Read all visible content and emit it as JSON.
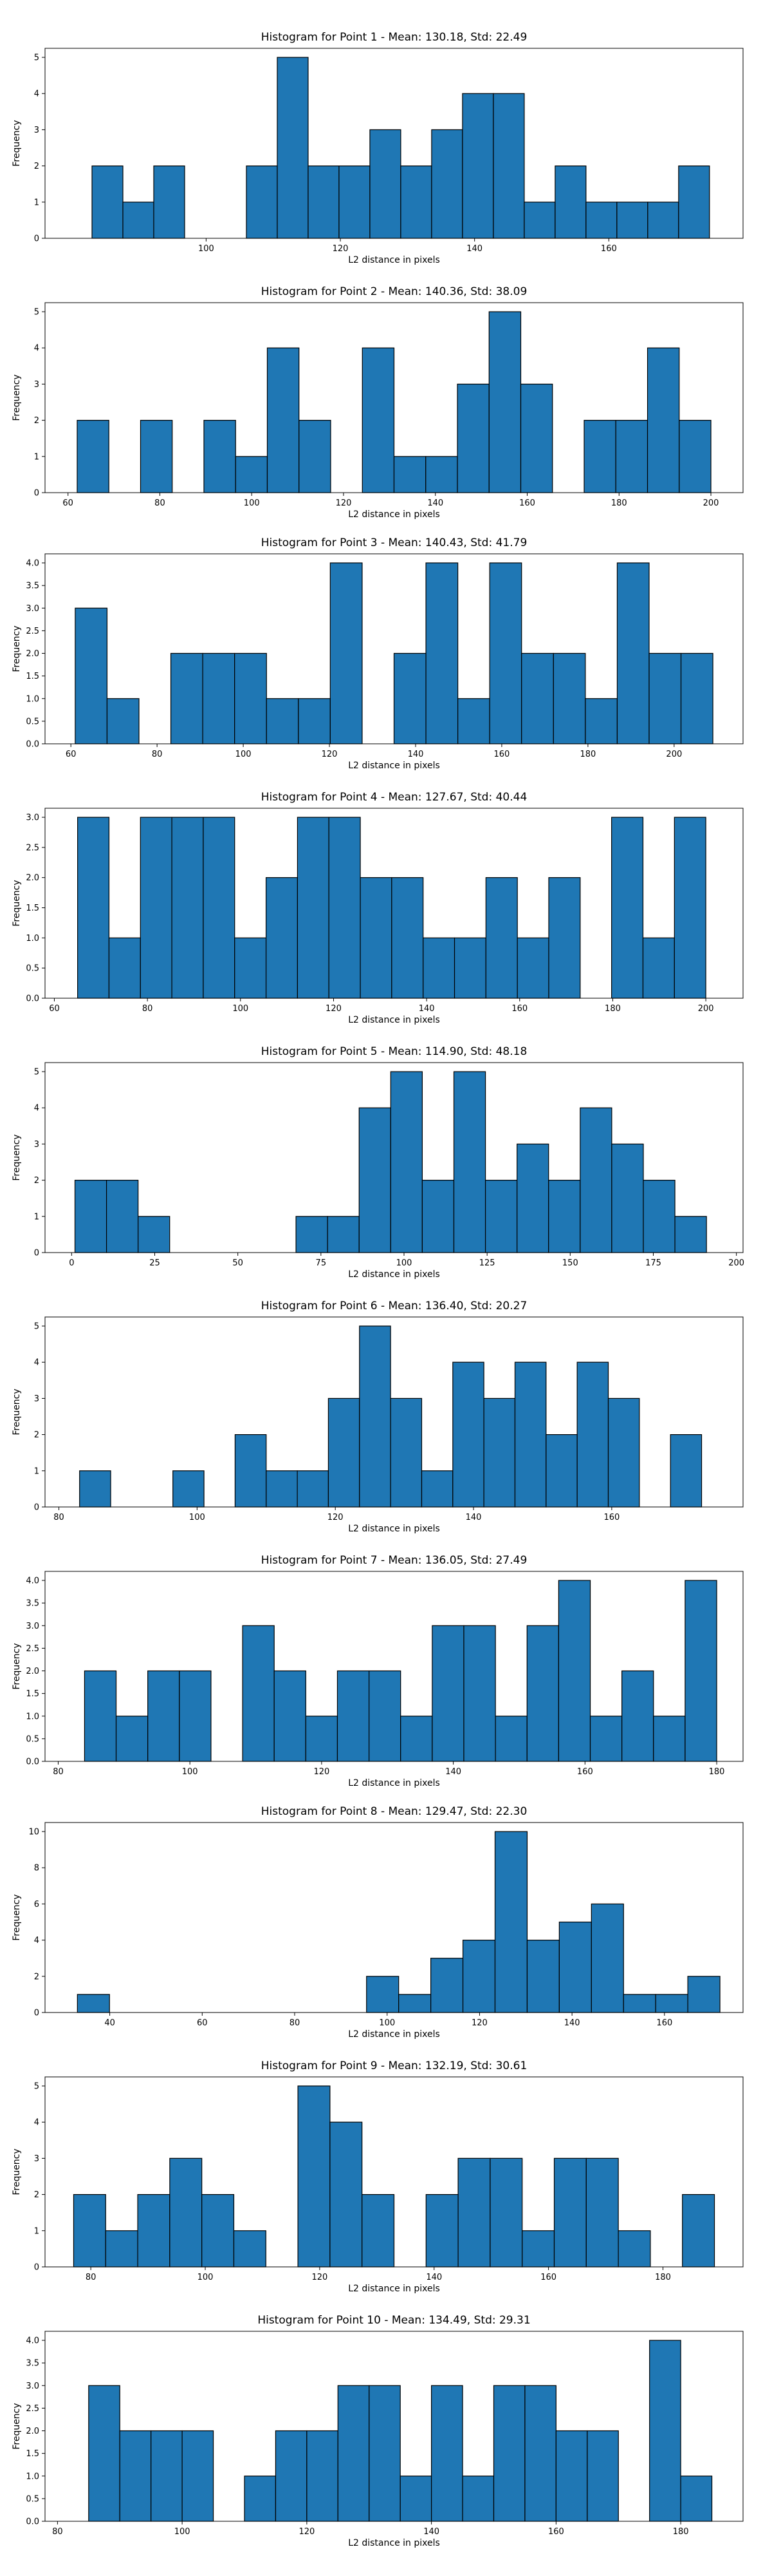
{
  "chart_data": [
    {
      "type": "bar",
      "title": "Histogram for Point 1 - Mean: 130.18, Std: 22.49",
      "xlabel": "L2 distance in pixels",
      "ylabel": "Frequency",
      "xlim": [
        76,
        180
      ],
      "ylim": [
        0,
        5.25
      ],
      "bin_edges": [
        83,
        87.6,
        92.2,
        96.8,
        101.4,
        106,
        110.6,
        115.2,
        119.8,
        124.4,
        129,
        133.6,
        138.2,
        142.8,
        147.4,
        152,
        156.6,
        161.2,
        165.8,
        170.4,
        175
      ],
      "values": [
        2,
        1,
        2,
        0,
        0,
        2,
        5,
        2,
        2,
        3,
        2,
        3,
        4,
        4,
        1,
        2,
        1,
        1,
        1,
        2
      ],
      "xticks": [
        100,
        120,
        140,
        160
      ],
      "yticks": [
        0,
        1,
        2,
        3,
        4,
        5
      ]
    },
    {
      "type": "bar",
      "title": "Histogram for Point 2 - Mean: 140.36, Std: 38.09",
      "xlabel": "L2 distance in pixels",
      "ylabel": "Frequency",
      "xlim": [
        55,
        207
      ],
      "ylim": [
        0,
        5.25
      ],
      "bin_edges": [
        62,
        68.9,
        75.8,
        82.7,
        89.6,
        96.5,
        103.4,
        110.3,
        117.2,
        124.1,
        131,
        137.9,
        144.8,
        151.7,
        158.6,
        165.5,
        172.4,
        179.3,
        186.2,
        193.1,
        200
      ],
      "values": [
        2,
        0,
        2,
        0,
        2,
        1,
        4,
        2,
        0,
        4,
        1,
        1,
        3,
        5,
        3,
        0,
        2,
        2,
        4,
        2
      ],
      "xticks": [
        60,
        80,
        100,
        120,
        140,
        160,
        180,
        200
      ],
      "yticks": [
        0,
        1,
        2,
        3,
        4,
        5
      ]
    },
    {
      "type": "bar",
      "title": "Histogram for Point 3 - Mean: 140.43, Std: 41.79",
      "xlabel": "L2 distance in pixels",
      "ylabel": "Frequency",
      "xlim": [
        54,
        216
      ],
      "ylim": [
        0,
        4.2
      ],
      "bin_edges": [
        61,
        68.4,
        75.8,
        83.2,
        90.6,
        98,
        105.4,
        112.8,
        120.2,
        127.6,
        135,
        142.4,
        149.8,
        157.2,
        164.6,
        172,
        179.4,
        186.8,
        194.2,
        201.6,
        209
      ],
      "values": [
        3,
        1,
        0,
        2,
        2,
        2,
        1,
        1,
        4,
        0,
        2,
        4,
        1,
        4,
        2,
        2,
        1,
        4,
        2,
        2
      ],
      "xticks": [
        60,
        80,
        100,
        120,
        140,
        160,
        180,
        200
      ],
      "yticks": [
        "0.0",
        "0.5",
        "1.0",
        "1.5",
        "2.0",
        "2.5",
        "3.0",
        "3.5",
        "4.0"
      ]
    },
    {
      "type": "bar",
      "title": "Histogram for Point 4 - Mean: 127.67, Std: 40.44",
      "xlabel": "L2 distance in pixels",
      "ylabel": "Frequency",
      "xlim": [
        58,
        208
      ],
      "ylim": [
        0,
        3.15
      ],
      "bin_edges": [
        65,
        71.75,
        78.5,
        85.25,
        92,
        98.75,
        105.5,
        112.25,
        119,
        125.75,
        132.5,
        139.25,
        146,
        152.75,
        159.5,
        166.25,
        173,
        179.75,
        186.5,
        193.25,
        200
      ],
      "values": [
        3,
        1,
        3,
        3,
        3,
        1,
        2,
        3,
        3,
        2,
        2,
        1,
        1,
        2,
        1,
        2,
        0,
        3,
        1,
        3
      ],
      "xticks": [
        60,
        80,
        100,
        120,
        140,
        160,
        180,
        200
      ],
      "yticks": [
        "0.0",
        "0.5",
        "1.0",
        "1.5",
        "2.0",
        "2.5",
        "3.0"
      ]
    },
    {
      "type": "bar",
      "title": "Histogram for Point 5 - Mean: 114.90, Std: 48.18",
      "xlabel": "L2 distance in pixels",
      "ylabel": "Frequency",
      "xlim": [
        -8,
        202
      ],
      "ylim": [
        0,
        5.25
      ],
      "bin_edges": [
        1,
        10.5,
        20,
        29.5,
        39,
        48.5,
        58,
        67.5,
        77,
        86.5,
        96,
        105.5,
        115,
        124.5,
        134,
        143.5,
        153,
        162.5,
        172,
        181.5,
        191
      ],
      "values": [
        2,
        2,
        1,
        0,
        0,
        0,
        0,
        1,
        1,
        4,
        5,
        2,
        5,
        2,
        3,
        2,
        4,
        3,
        2,
        1
      ],
      "xticks": [
        0,
        25,
        50,
        75,
        100,
        125,
        150,
        175,
        200
      ],
      "yticks": [
        0,
        1,
        2,
        3,
        4,
        5
      ]
    },
    {
      "type": "bar",
      "title": "Histogram for Point 6 - Mean: 136.40, Std: 20.27",
      "xlabel": "L2 distance in pixels",
      "ylabel": "Frequency",
      "xlim": [
        78,
        179
      ],
      "ylim": [
        0,
        5.25
      ],
      "bin_edges": [
        83,
        87.5,
        92,
        96.5,
        101,
        105.5,
        110,
        114.5,
        119,
        123.5,
        128,
        132.5,
        137,
        141.5,
        146,
        150.5,
        155,
        159.5,
        164,
        168.5,
        173
      ],
      "values": [
        1,
        0,
        0,
        1,
        0,
        2,
        1,
        1,
        3,
        5,
        3,
        1,
        4,
        3,
        4,
        2,
        4,
        3,
        0,
        2
      ],
      "xticks": [
        80,
        100,
        120,
        140,
        160
      ],
      "yticks": [
        0,
        1,
        2,
        3,
        4,
        5
      ]
    },
    {
      "type": "bar",
      "title": "Histogram for Point 7 - Mean: 136.05, Std: 27.49",
      "xlabel": "L2 distance in pixels",
      "ylabel": "Frequency",
      "xlim": [
        78,
        184
      ],
      "ylim": [
        0,
        4.2
      ],
      "bin_edges": [
        84,
        88.8,
        93.6,
        98.4,
        103.2,
        108,
        112.8,
        117.6,
        122.4,
        127.2,
        132,
        136.8,
        141.6,
        146.4,
        151.2,
        156,
        160.8,
        165.6,
        170.4,
        175.2,
        180
      ],
      "values": [
        2,
        1,
        2,
        2,
        0,
        3,
        2,
        1,
        2,
        2,
        1,
        3,
        3,
        1,
        3,
        4,
        1,
        2,
        1,
        4
      ],
      "xticks": [
        80,
        100,
        120,
        140,
        160,
        180
      ],
      "yticks": [
        "0.0",
        "0.5",
        "1.0",
        "1.5",
        "2.0",
        "2.5",
        "3.0",
        "3.5",
        "4.0"
      ]
    },
    {
      "type": "bar",
      "title": "Histogram for Point 8 - Mean: 129.47, Std: 22.30",
      "xlabel": "L2 distance in pixels",
      "ylabel": "Frequency",
      "xlim": [
        26,
        177
      ],
      "ylim": [
        0,
        10.5
      ],
      "bin_edges": [
        33,
        39.95,
        46.9,
        53.85,
        60.8,
        67.75,
        74.7,
        81.65,
        88.6,
        95.55,
        102.5,
        109.45,
        116.4,
        123.35,
        130.3,
        137.25,
        144.2,
        151.15,
        158.1,
        165.05,
        172
      ],
      "values": [
        1,
        0,
        0,
        0,
        0,
        0,
        0,
        0,
        0,
        2,
        1,
        3,
        4,
        10,
        4,
        5,
        6,
        1,
        1,
        2
      ],
      "xticks": [
        40,
        60,
        80,
        100,
        120,
        140,
        160
      ],
      "yticks": [
        0,
        2,
        4,
        6,
        8,
        10
      ]
    },
    {
      "type": "bar",
      "title": "Histogram for Point 9 - Mean: 132.19, Std: 30.61",
      "xlabel": "L2 distance in pixels",
      "ylabel": "Frequency",
      "xlim": [
        72,
        194
      ],
      "ylim": [
        0,
        5.25
      ],
      "bin_edges": [
        77,
        82.6,
        88.2,
        93.8,
        99.4,
        105,
        110.6,
        116.2,
        121.8,
        127.4,
        133,
        138.6,
        144.2,
        149.8,
        155.4,
        161,
        166.6,
        172.2,
        177.8,
        183.4,
        189
      ],
      "values": [
        2,
        1,
        2,
        3,
        2,
        1,
        0,
        5,
        4,
        2,
        0,
        2,
        3,
        3,
        1,
        3,
        3,
        1,
        0,
        2
      ],
      "xticks": [
        80,
        100,
        120,
        140,
        160,
        180
      ],
      "yticks": [
        0,
        1,
        2,
        3,
        4,
        5
      ]
    },
    {
      "type": "bar",
      "title": "Histogram for Point 10 - Mean: 134.49, Std: 29.31",
      "xlabel": "L2 distance in pixels",
      "ylabel": "Frequency",
      "xlim": [
        78,
        190
      ],
      "ylim": [
        0,
        4.2
      ],
      "bin_edges": [
        85,
        90,
        95,
        100,
        105,
        110,
        115,
        120,
        125,
        130,
        135,
        140,
        145,
        150,
        155,
        160,
        165,
        170,
        175,
        180,
        185
      ],
      "values": [
        3,
        2,
        2,
        2,
        0,
        1,
        2,
        2,
        3,
        3,
        1,
        3,
        1,
        3,
        3,
        2,
        2,
        0,
        4,
        1
      ],
      "xticks": [
        80,
        100,
        120,
        140,
        160,
        180
      ],
      "yticks": [
        "0.0",
        "0.5",
        "1.0",
        "1.5",
        "2.0",
        "2.5",
        "3.0",
        "3.5",
        "4.0"
      ]
    }
  ],
  "colors": {
    "bar_fill": "#1f77b4",
    "bar_edge": "#000000",
    "axis": "#000000"
  }
}
